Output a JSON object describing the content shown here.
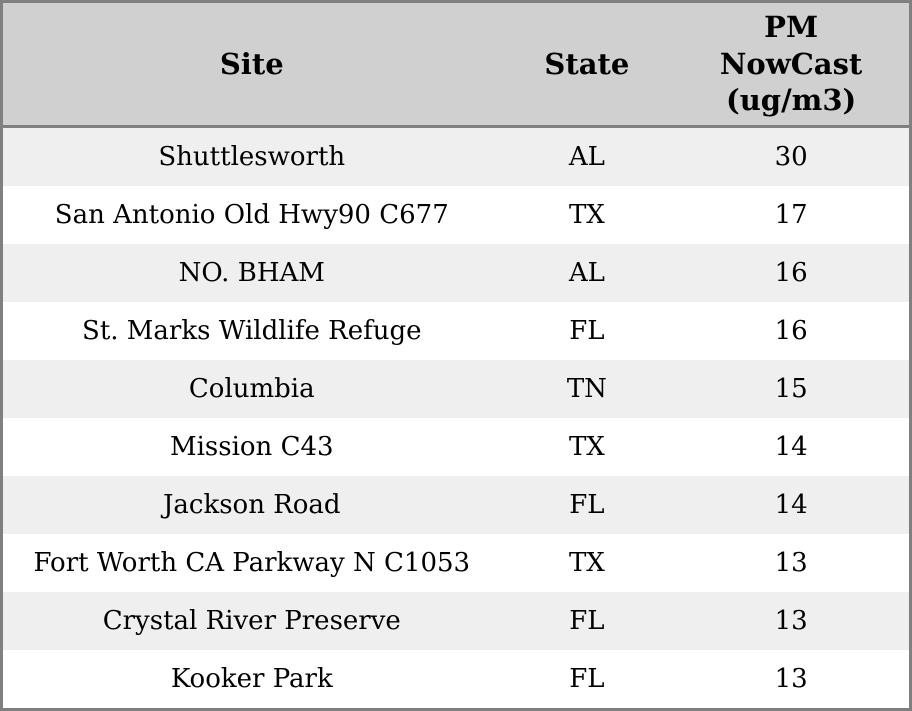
{
  "chart_data": {
    "type": "table",
    "title": "",
    "columns": [
      "Site",
      "State",
      "PM NowCast (ug/m3)"
    ],
    "columns_display": [
      "Site",
      "State",
      "PM\nNowCast\n(ug/m3)"
    ],
    "rows": [
      {
        "site": "Shuttlesworth",
        "state": "AL",
        "pm": 30
      },
      {
        "site": "San Antonio Old Hwy90 C677",
        "state": "TX",
        "pm": 17
      },
      {
        "site": "NO. BHAM",
        "state": "AL",
        "pm": 16
      },
      {
        "site": "St. Marks Wildlife Refuge",
        "state": "FL",
        "pm": 16
      },
      {
        "site": "Columbia",
        "state": "TN",
        "pm": 15
      },
      {
        "site": "Mission C43",
        "state": "TX",
        "pm": 14
      },
      {
        "site": "Jackson Road",
        "state": "FL",
        "pm": 14
      },
      {
        "site": "Fort Worth CA Parkway N C1053",
        "state": "TX",
        "pm": 13
      },
      {
        "site": "Crystal River Preserve",
        "state": "FL",
        "pm": 13
      },
      {
        "site": "Kooker Park",
        "state": "FL",
        "pm": 13
      }
    ]
  },
  "colors": {
    "border": "#7f7f7f",
    "header_bg": "#d0d0d0",
    "row_alt_bg": "#efefef",
    "row_bg": "#ffffff",
    "text": "#000000"
  }
}
